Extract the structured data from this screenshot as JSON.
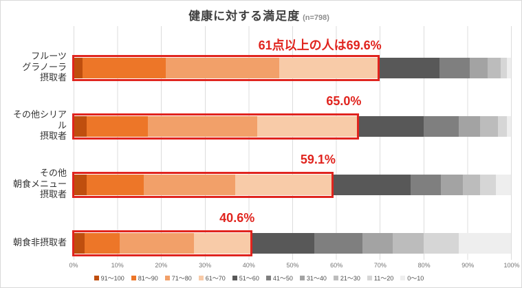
{
  "title": "健康に対する満足度",
  "subtitle": "(n=798)",
  "colors": {
    "annotation": "#e0241e",
    "highlight_border": "#e0241e",
    "gridline": "#dcdcdc"
  },
  "chart_data": {
    "type": "bar",
    "stacked": true,
    "orientation": "horizontal",
    "title": "健康に対する満足度",
    "subtitle": "(n=798)",
    "xlabel": "",
    "ylabel": "",
    "xlim": [
      0,
      100
    ],
    "grid": true,
    "legend_position": "bottom",
    "x_ticks": [
      "0%",
      "10%",
      "20%",
      "30%",
      "40%",
      "50%",
      "60%",
      "70%",
      "80%",
      "90%",
      "100%"
    ],
    "categories": [
      "フルーツ\nグラノーラ\n摂取者",
      "その他シリアル\n摂取者",
      "その他\n朝食メニュー\n摂取者",
      "朝食非摂取者"
    ],
    "series": [
      {
        "name": "91～100",
        "color": "#bf4e0e",
        "values": [
          2.0,
          3.0,
          3.0,
          2.5
        ]
      },
      {
        "name": "81～90",
        "color": "#ed7628",
        "values": [
          19.0,
          14.0,
          13.0,
          8.0
        ]
      },
      {
        "name": "71～80",
        "color": "#f2a069",
        "values": [
          26.0,
          25.0,
          21.0,
          17.0
        ]
      },
      {
        "name": "61～70",
        "color": "#f8cba8",
        "values": [
          22.6,
          23.0,
          22.1,
          13.1
        ]
      },
      {
        "name": "51～60",
        "color": "#585858",
        "values": [
          14.0,
          15.0,
          17.9,
          14.4
        ]
      },
      {
        "name": "41～50",
        "color": "#7f7f7f",
        "values": [
          7.0,
          8.0,
          7.0,
          11.0
        ]
      },
      {
        "name": "31～40",
        "color": "#a3a3a3",
        "values": [
          4.0,
          5.0,
          5.0,
          7.0
        ]
      },
      {
        "name": "21～30",
        "color": "#bcbcbc",
        "values": [
          3.0,
          4.0,
          4.0,
          7.0
        ]
      },
      {
        "name": "11～20",
        "color": "#d6d6d6",
        "values": [
          1.4,
          2.0,
          3.5,
          8.0
        ]
      },
      {
        "name": "0～10",
        "color": "#eeeeee",
        "values": [
          1.0,
          1.0,
          3.5,
          12.0
        ]
      }
    ],
    "highlights": [
      {
        "total": 69.6,
        "label": "61点以上の人は69.6%"
      },
      {
        "total": 65.0,
        "label": "65.0%"
      },
      {
        "total": 59.1,
        "label": "59.1%"
      },
      {
        "total": 40.6,
        "label": "40.6%"
      }
    ]
  }
}
